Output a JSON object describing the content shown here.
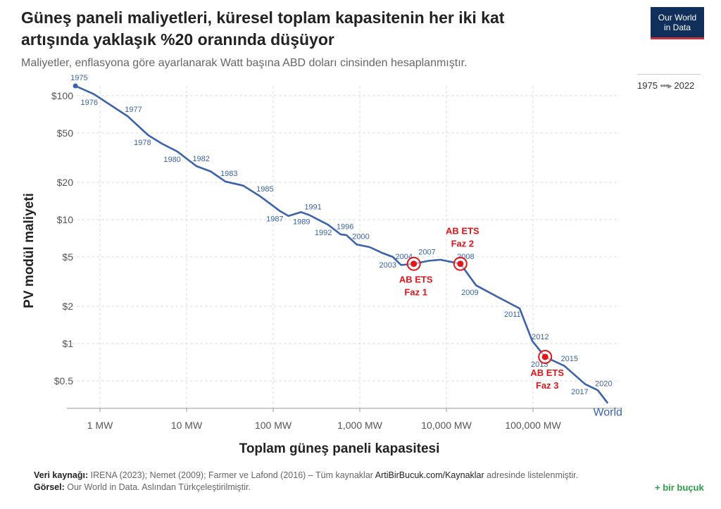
{
  "header": {
    "title_line1": "Güneş paneli maliyetleri, küresel toplam kapasitenin her iki kat",
    "title_line2": "artışında yaklaşık %20 oranında düşüyor",
    "subtitle": "Maliyetler, enflasyona göre ayarlanarak Watt başına ABD doları cinsinden hesaplanmıştır."
  },
  "logo": {
    "line1": "Our World",
    "line2": "in Data"
  },
  "timeline": {
    "start": "1975",
    "end": "2022"
  },
  "footer": {
    "source_label": "Veri kaynağı:",
    "source_text": "IRENA (2023); Nemet (2009); Farmer ve Lafond (2016) – Tüm kaynaklar",
    "source_link": "ArtiBirBucuk.com/Kaynaklar",
    "source_tail": "adresinde listelenmiştir.",
    "graphic_label": "Görsel:",
    "graphic_text": "Our World in Data. Aslından Türkçeleştirilmiştir.",
    "brand": "+ bir buçuk"
  },
  "colors": {
    "line": "#3a63aa",
    "annotation": "#e0161b",
    "grid": "#dddddd"
  },
  "chart_data": {
    "type": "line",
    "xscale": "log",
    "yscale": "log",
    "xlabel": "Toplam güneş paneli kapasitesi",
    "ylabel": "PV modül maliyeti",
    "xlim": [
      0.5,
      1000000
    ],
    "ylim": [
      0.3,
      120
    ],
    "xticks": [
      {
        "v": 1,
        "label": "1 MW"
      },
      {
        "v": 10,
        "label": "10 MW"
      },
      {
        "v": 100,
        "label": "100 MW"
      },
      {
        "v": 1000,
        "label": "1,000 MW"
      },
      {
        "v": 10000,
        "label": "10,000 MW"
      },
      {
        "v": 100000,
        "label": "100,000 MW"
      }
    ],
    "yticks": [
      {
        "v": 100,
        "label": "$100"
      },
      {
        "v": 50,
        "label": "$50"
      },
      {
        "v": 20,
        "label": "$20"
      },
      {
        "v": 10,
        "label": "$10"
      },
      {
        "v": 5,
        "label": "$5"
      },
      {
        "v": 2,
        "label": "$2"
      },
      {
        "v": 1,
        "label": "$1"
      },
      {
        "v": 0.5,
        "label": "$0.5"
      }
    ],
    "series": [
      {
        "name": "World",
        "points": [
          {
            "x": 0.52,
            "y": 120,
            "label": "1975"
          },
          {
            "x": 0.85,
            "y": 103,
            "label": "1976"
          },
          {
            "x": 2.1,
            "y": 68,
            "label": "1977"
          },
          {
            "x": 3.6,
            "y": 48,
            "label": "1978"
          },
          {
            "x": 5.2,
            "y": 41
          },
          {
            "x": 7.8,
            "y": 35.5,
            "label": "1980"
          },
          {
            "x": 13,
            "y": 27,
            "label": "1982"
          },
          {
            "x": 19,
            "y": 24.5
          },
          {
            "x": 28,
            "y": 20.3,
            "label": "1983"
          },
          {
            "x": 45,
            "y": 18.8
          },
          {
            "x": 70,
            "y": 15.5,
            "label": "1985"
          },
          {
            "x": 120,
            "y": 11.7,
            "label": "1987"
          },
          {
            "x": 150,
            "y": 10.7
          },
          {
            "x": 210,
            "y": 11.5,
            "label": "1989"
          },
          {
            "x": 260,
            "y": 10.9,
            "label": "1991"
          },
          {
            "x": 430,
            "y": 9.1,
            "label": "1992"
          },
          {
            "x": 600,
            "y": 7.6,
            "label": "1996"
          },
          {
            "x": 700,
            "y": 7.5
          },
          {
            "x": 920,
            "y": 6.3,
            "label": "2000"
          },
          {
            "x": 1300,
            "y": 6.0
          },
          {
            "x": 1800,
            "y": 5.4
          },
          {
            "x": 2400,
            "y": 5.0,
            "label": "2003"
          },
          {
            "x": 3000,
            "y": 4.3,
            "label": "2004"
          },
          {
            "x": 4200,
            "y": 4.4
          },
          {
            "x": 6200,
            "y": 4.65,
            "label": "2007"
          },
          {
            "x": 8500,
            "y": 4.75
          },
          {
            "x": 14500,
            "y": 4.4,
            "label": "2008"
          },
          {
            "x": 22000,
            "y": 2.95,
            "label": "2009"
          },
          {
            "x": 38000,
            "y": 2.4
          },
          {
            "x": 70000,
            "y": 1.92,
            "label": "2011"
          },
          {
            "x": 98000,
            "y": 1.05,
            "label": "2012"
          },
          {
            "x": 138000,
            "y": 0.78,
            "label": "2013"
          },
          {
            "x": 230000,
            "y": 0.66,
            "label": "2015"
          },
          {
            "x": 400000,
            "y": 0.47,
            "label": "2017"
          },
          {
            "x": 560000,
            "y": 0.42,
            "label": "2020"
          },
          {
            "x": 730000,
            "y": 0.33
          }
        ],
        "end_label": "World"
      }
    ],
    "annotations": [
      {
        "x": 4200,
        "y": 4.4,
        "line1": "AB ETS",
        "line2": "Faz 1",
        "position": "below"
      },
      {
        "x": 14500,
        "y": 4.4,
        "line1": "AB ETS",
        "line2": "Faz 2",
        "position": "above"
      },
      {
        "x": 138000,
        "y": 0.78,
        "line1": "AB ETS",
        "line2": "Faz 3",
        "position": "below"
      }
    ]
  }
}
